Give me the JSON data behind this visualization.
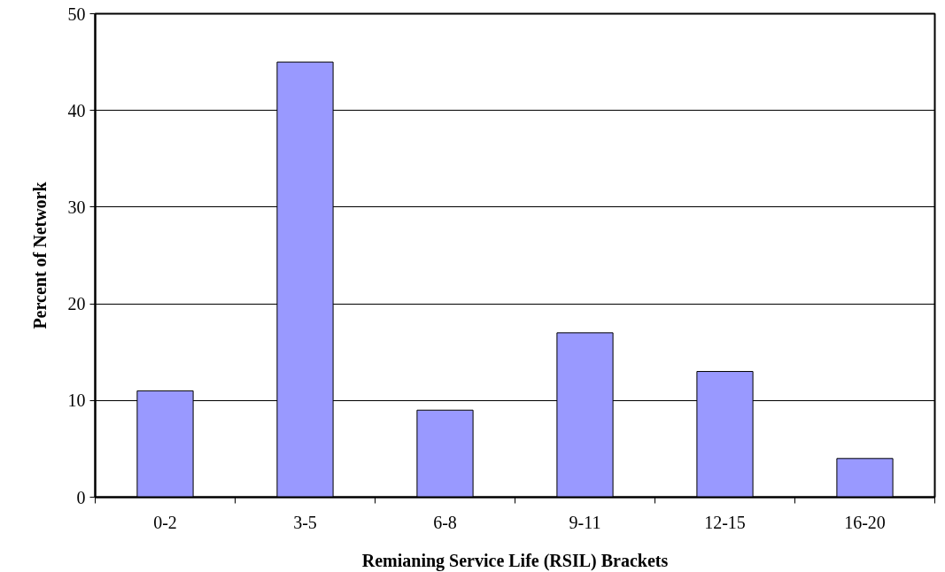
{
  "chart_data": {
    "type": "bar",
    "xlabel": "Remianing Service Life (RSIL) Brackets",
    "ylabel": "Percent of Network",
    "categories": [
      "0-2",
      "3-5",
      "6-8",
      "9-11",
      "12-15",
      "16-20"
    ],
    "values": [
      11,
      45,
      9,
      17,
      13,
      4
    ],
    "color": "#9999ff",
    "ylim": [
      0,
      50
    ],
    "yticks": [
      0,
      10,
      20,
      30,
      40,
      50
    ],
    "grid": "y"
  }
}
